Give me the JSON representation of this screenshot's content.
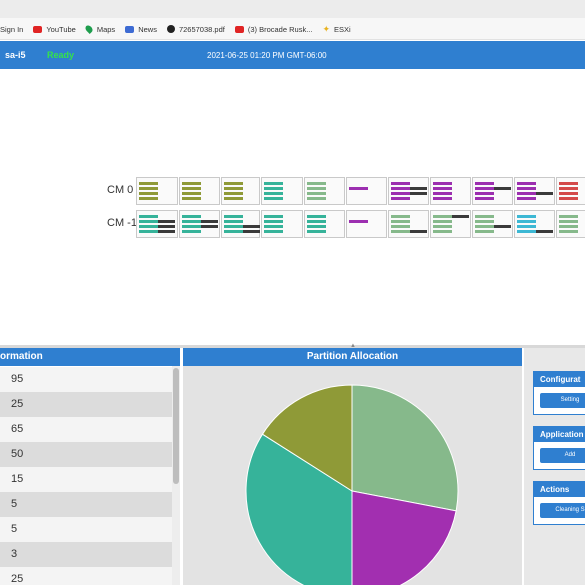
{
  "bookmarks": [
    {
      "label": "Sign In",
      "icon": "none"
    },
    {
      "label": "YouTube",
      "icon": "youtube-icon"
    },
    {
      "label": "Maps",
      "icon": "map-pin-icon"
    },
    {
      "label": "News",
      "icon": "news-icon"
    },
    {
      "label": "72657038.pdf",
      "icon": "globe-icon"
    },
    {
      "label": "(3) Brocade Rusk...",
      "icon": "youtube-icon"
    },
    {
      "label": "ESXi",
      "icon": "star-icon"
    }
  ],
  "status": {
    "host": "sa-i5",
    "state": "Ready",
    "state_color": "#35e34a",
    "datetime": "2021-06-25 01:20 PM GMT-06:00"
  },
  "cm_rows": [
    {
      "label": "CM 0",
      "cells": [
        {
          "color": "#8f9a37",
          "dark": [
            0,
            0,
            0,
            0
          ]
        },
        {
          "color": "#8f9a37",
          "dark": [
            0,
            0,
            0,
            0
          ]
        },
        {
          "color": "#8f9a37",
          "dark": [
            0,
            0,
            0,
            0
          ]
        },
        {
          "color": "#36b39a",
          "dark": [
            0,
            0,
            0,
            0
          ]
        },
        {
          "color": "#86b98b",
          "dark": [
            0,
            0,
            0,
            0
          ]
        },
        {
          "color": "#9c2fb0",
          "dark": [
            0,
            0,
            0,
            0
          ],
          "sparse": true
        },
        {
          "color": "#9c2fb0",
          "dark": [
            0,
            1,
            1,
            0
          ]
        },
        {
          "color": "#9c2fb0",
          "dark": [
            0,
            0,
            0,
            0
          ]
        },
        {
          "color": "#9c2fb0",
          "dark": [
            0,
            1,
            0,
            0
          ]
        },
        {
          "color": "#9c2fb0",
          "dark": [
            0,
            0,
            1,
            0
          ]
        },
        {
          "color": "#d44a4a",
          "dark": [
            0,
            0,
            0,
            0
          ]
        }
      ]
    },
    {
      "label": "CM -1",
      "cells": [
        {
          "color": "#36b39a",
          "dark": [
            0,
            1,
            1,
            1
          ]
        },
        {
          "color": "#36b39a",
          "dark": [
            0,
            1,
            1,
            0
          ]
        },
        {
          "color": "#36b39a",
          "dark": [
            0,
            0,
            1,
            1
          ]
        },
        {
          "color": "#36b39a",
          "dark": [
            0,
            0,
            0,
            0
          ]
        },
        {
          "color": "#36b39a",
          "dark": [
            0,
            0,
            0,
            0
          ]
        },
        {
          "color": "#9c2fb0",
          "dark": [
            0,
            0,
            0,
            0
          ],
          "sparse": true
        },
        {
          "color": "#86b98b",
          "dark": [
            0,
            0,
            0,
            1
          ]
        },
        {
          "color": "#86b98b",
          "dark": [
            1,
            0,
            0,
            0
          ]
        },
        {
          "color": "#86b98b",
          "dark": [
            0,
            0,
            1,
            0
          ]
        },
        {
          "color": "#3db8d4",
          "dark": [
            0,
            0,
            0,
            1
          ]
        },
        {
          "color": "#86b98b",
          "dark": [
            0,
            0,
            0,
            0
          ]
        }
      ]
    }
  ],
  "info_panel": {
    "title": "ormation",
    "rows": [
      "95",
      "25",
      "65",
      "50",
      "15",
      "5",
      "5",
      "3",
      "25"
    ]
  },
  "partition_panel": {
    "title": "Partition Allocation"
  },
  "chart_data": {
    "type": "pie",
    "slices": [
      {
        "value": 28,
        "color": "#86b98b"
      },
      {
        "value": 22,
        "color": "#a22fb0"
      },
      {
        "value": 34,
        "color": "#36b39a"
      },
      {
        "value": 16,
        "color": "#8f9a37"
      }
    ]
  },
  "side_panel": {
    "sections": [
      {
        "title": "Configurat",
        "button": "Setting"
      },
      {
        "title": "Application",
        "button": "Add"
      },
      {
        "title": "Actions",
        "button": "Cleaning S"
      }
    ]
  }
}
